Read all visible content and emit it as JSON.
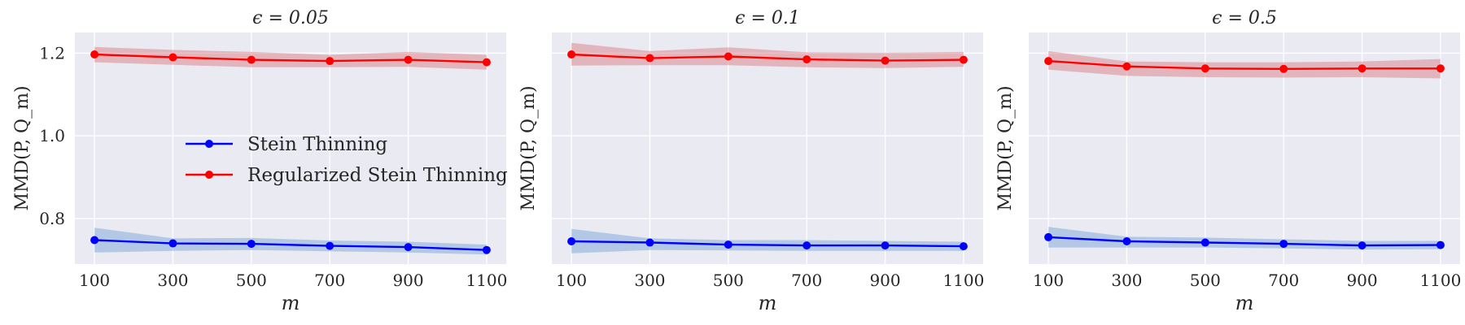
{
  "chart_data": [
    {
      "type": "line",
      "title": "ϵ = 0.05",
      "xlabel": "m",
      "ylabel": "MMD(P, Q_m)",
      "x": [
        100,
        300,
        500,
        700,
        900,
        1100
      ],
      "xlim": [
        50,
        1150
      ],
      "ylim": [
        0.69,
        1.25
      ],
      "yticks": [
        0.8,
        1.0,
        1.2
      ],
      "ytick_labels": [
        "0.8",
        "1.0",
        "1.2"
      ],
      "grid": true,
      "legend": {
        "placement": "center-left"
      },
      "series": [
        {
          "name": "Stein Thinning",
          "color": "#0000ff",
          "band_color": "#6e9fd3",
          "values": [
            0.748,
            0.74,
            0.739,
            0.734,
            0.731,
            0.724
          ],
          "lower": [
            0.718,
            0.722,
            0.724,
            0.721,
            0.718,
            0.713
          ],
          "upper": [
            0.778,
            0.752,
            0.753,
            0.747,
            0.744,
            0.737
          ]
        },
        {
          "name": "Regularized Stein Thinning",
          "color": "#ff0000",
          "band_color": "#d9737a",
          "values": [
            1.197,
            1.19,
            1.184,
            1.181,
            1.184,
            1.178
          ],
          "lower": [
            1.178,
            1.172,
            1.166,
            1.166,
            1.167,
            1.16
          ],
          "upper": [
            1.215,
            1.208,
            1.203,
            1.196,
            1.203,
            1.196
          ]
        }
      ]
    },
    {
      "type": "line",
      "title": "ϵ = 0.1",
      "xlabel": "m",
      "ylabel": "MMD(P, Q_m)",
      "x": [
        100,
        300,
        500,
        700,
        900,
        1100
      ],
      "xlim": [
        50,
        1150
      ],
      "ylim": [
        0.69,
        1.25
      ],
      "yticks": [
        0.8,
        1.0,
        1.2
      ],
      "ytick_labels": [
        "",
        "",
        ""
      ],
      "grid": true,
      "series": [
        {
          "name": "Stein Thinning",
          "color": "#0000ff",
          "band_color": "#6e9fd3",
          "values": [
            0.745,
            0.742,
            0.737,
            0.735,
            0.735,
            0.733
          ],
          "lower": [
            0.716,
            0.724,
            0.723,
            0.722,
            0.722,
            0.722
          ],
          "upper": [
            0.775,
            0.752,
            0.748,
            0.748,
            0.746,
            0.744
          ]
        },
        {
          "name": "Regularized Stein Thinning",
          "color": "#ff0000",
          "band_color": "#d9737a",
          "values": [
            1.197,
            1.188,
            1.192,
            1.185,
            1.182,
            1.184
          ],
          "lower": [
            1.17,
            1.171,
            1.171,
            1.166,
            1.164,
            1.167
          ],
          "upper": [
            1.225,
            1.205,
            1.214,
            1.202,
            1.201,
            1.203
          ]
        }
      ]
    },
    {
      "type": "line",
      "title": "ϵ = 0.5",
      "xlabel": "m",
      "ylabel": "MMD(P, Q_m)",
      "x": [
        100,
        300,
        500,
        700,
        900,
        1100
      ],
      "xlim": [
        50,
        1150
      ],
      "ylim": [
        0.69,
        1.25
      ],
      "yticks": [
        0.8,
        1.0,
        1.2
      ],
      "ytick_labels": [
        "",
        "",
        ""
      ],
      "grid": true,
      "series": [
        {
          "name": "Stein Thinning",
          "color": "#0000ff",
          "band_color": "#6e9fd3",
          "values": [
            0.755,
            0.745,
            0.742,
            0.739,
            0.735,
            0.736
          ],
          "lower": [
            0.73,
            0.73,
            0.73,
            0.728,
            0.725,
            0.726
          ],
          "upper": [
            0.78,
            0.756,
            0.754,
            0.75,
            0.746,
            0.746
          ]
        },
        {
          "name": "Regularized Stein Thinning",
          "color": "#ff0000",
          "band_color": "#d9737a",
          "values": [
            1.181,
            1.168,
            1.163,
            1.162,
            1.163,
            1.163
          ],
          "lower": [
            1.16,
            1.145,
            1.142,
            1.141,
            1.142,
            1.139
          ],
          "upper": [
            1.205,
            1.18,
            1.178,
            1.178,
            1.18,
            1.186
          ]
        }
      ]
    }
  ]
}
